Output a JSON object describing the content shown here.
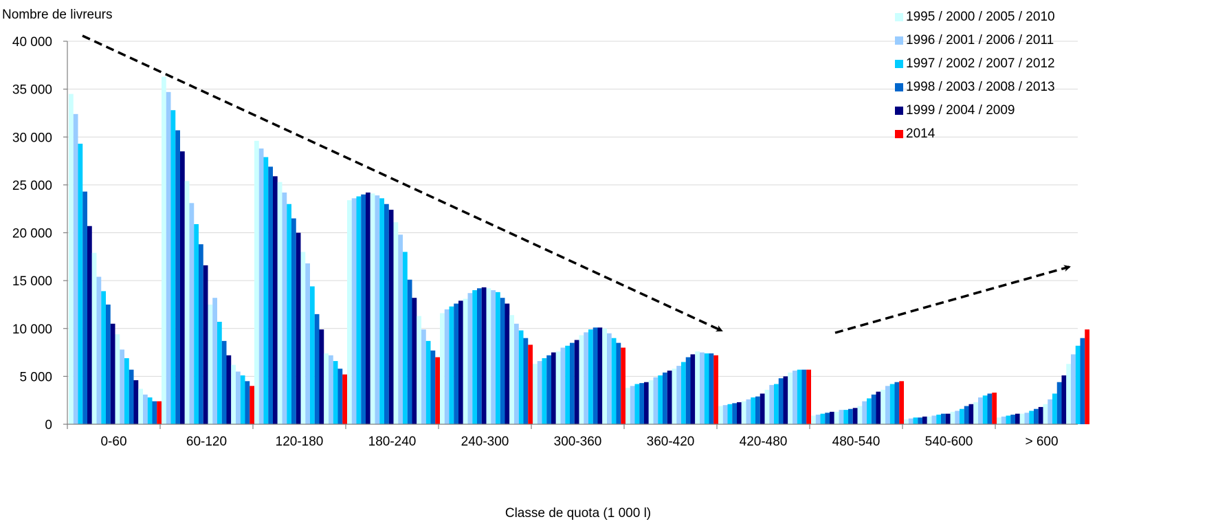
{
  "chart_data": {
    "type": "bar",
    "ylabel": "Nombre de livreurs",
    "xlabel": "Classe de quota (1 000 l)",
    "ylim": [
      0,
      40000
    ],
    "y_ticks": [
      "0",
      "5 000",
      "10 000",
      "15 000",
      "20 000",
      "25 000",
      "30 000",
      "35 000",
      "40 000"
    ],
    "y_tick_values": [
      0,
      5000,
      10000,
      15000,
      20000,
      25000,
      30000,
      35000,
      40000
    ],
    "grid": true,
    "legend_position": "top-right",
    "categories": [
      "0-60",
      "60-120",
      "120-180",
      "180-240",
      "240-300",
      "300-360",
      "360-420",
      "420-480",
      "480-540",
      "540-600",
      "> 600"
    ],
    "legend": [
      {
        "label": "1995 / 2000 / 2005 / 2010",
        "color": "#ccffff"
      },
      {
        "label": "1996 / 2001 / 2006 / 2011",
        "color": "#99ccff"
      },
      {
        "label": "1997 / 2002 / 2007 / 2012",
        "color": "#00ccff"
      },
      {
        "label": "1998 / 2003 / 2008 / 2013",
        "color": "#0066cc"
      },
      {
        "label": "1999 / 2004 / 2009",
        "color": "#000080"
      },
      {
        "label": "2014",
        "color": "#ff0000"
      }
    ],
    "years": [
      1995,
      1996,
      1997,
      1998,
      1999,
      2000,
      2001,
      2002,
      2003,
      2004,
      2005,
      2006,
      2007,
      2008,
      2009,
      2010,
      2011,
      2012,
      2013,
      2014
    ],
    "values": [
      [
        34500,
        32400,
        29300,
        24300,
        20700,
        17900,
        15400,
        13900,
        12500,
        10500,
        9400,
        7800,
        6900,
        5700,
        4600,
        3700,
        3100,
        2800,
        2400,
        2400
      ],
      [
        36300,
        34700,
        32800,
        30700,
        28500,
        25400,
        23100,
        20900,
        18800,
        16600,
        12500,
        13200,
        10700,
        8700,
        7200,
        6200,
        5500,
        5100,
        4500,
        4000
      ],
      [
        29600,
        28800,
        27900,
        26900,
        25900,
        25300,
        24200,
        23000,
        21500,
        20000,
        18000,
        16800,
        14400,
        11500,
        9900,
        7400,
        7200,
        6600,
        5800,
        5200
      ],
      [
        23400,
        23600,
        23800,
        24000,
        24200,
        24100,
        23900,
        23600,
        23000,
        22400,
        21100,
        19800,
        18000,
        15100,
        13200,
        11300,
        9900,
        8700,
        7700,
        7000
      ],
      [
        11600,
        12000,
        12300,
        12600,
        12900,
        13100,
        13700,
        14000,
        14200,
        14300,
        14200,
        14000,
        13800,
        13200,
        12600,
        11400,
        10500,
        9800,
        9000,
        8300
      ],
      [
        6300,
        6600,
        6900,
        7200,
        7500,
        7600,
        8000,
        8200,
        8500,
        8800,
        9300,
        9600,
        9900,
        10100,
        10100,
        10000,
        9500,
        9000,
        8500,
        8000
      ],
      [
        3800,
        4000,
        4200,
        4300,
        4400,
        4600,
        4900,
        5100,
        5400,
        5600,
        5800,
        6100,
        6500,
        7000,
        7300,
        7600,
        7500,
        7400,
        7400,
        7200
      ],
      [
        1900,
        2000,
        2100,
        2200,
        2300,
        2400,
        2600,
        2800,
        2900,
        3200,
        3600,
        4100,
        4200,
        4800,
        5000,
        5400,
        5600,
        5700,
        5700,
        5700
      ],
      [
        900,
        1000,
        1100,
        1200,
        1300,
        1300,
        1500,
        1500,
        1600,
        1700,
        1900,
        2400,
        2700,
        3100,
        3400,
        3600,
        4000,
        4200,
        4400,
        4500
      ],
      [
        500,
        600,
        700,
        700,
        800,
        800,
        900,
        1000,
        1100,
        1100,
        1300,
        1400,
        1600,
        1900,
        2100,
        2300,
        2800,
        3000,
        3200,
        3300
      ],
      [
        700,
        800,
        900,
        1000,
        1100,
        1100,
        1200,
        1400,
        1600,
        1800,
        2100,
        2600,
        3200,
        4400,
        5100,
        6300,
        7300,
        8200,
        9000,
        9900
      ]
    ]
  }
}
